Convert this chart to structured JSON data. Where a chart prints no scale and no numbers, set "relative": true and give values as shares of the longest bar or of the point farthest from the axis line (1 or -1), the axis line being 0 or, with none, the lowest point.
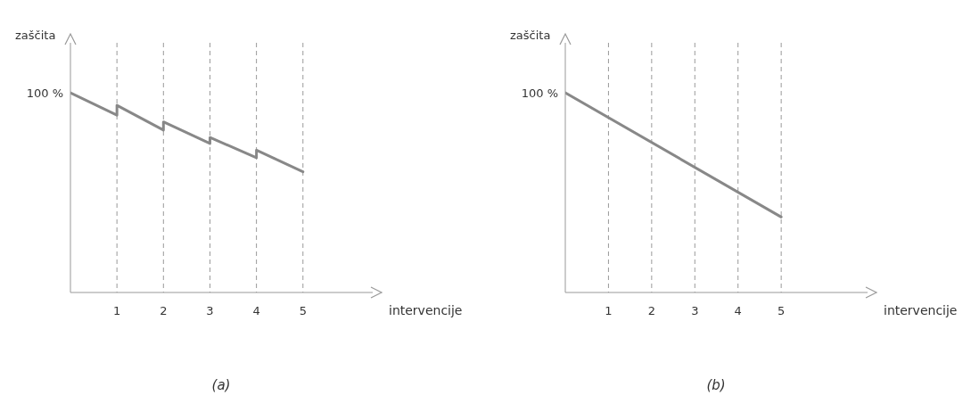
{
  "chart_data": [
    {
      "type": "line",
      "title": "(a)",
      "xlabel": "intervencije",
      "ylabel": "zaščita",
      "relative": true,
      "xlim": [
        0,
        6.5
      ],
      "xticks": [
        1,
        2,
        3,
        4,
        5
      ],
      "grid": "x",
      "annotations": [
        {
          "text": "100 %",
          "x": 0,
          "y": 1
        }
      ],
      "series": [
        {
          "color": "#888888",
          "x": [
            0,
            1,
            1,
            2,
            2,
            3,
            3,
            4,
            4,
            5
          ],
          "values": [
            1,
            0.888,
            0.937,
            0.813,
            0.854,
            0.746,
            0.776,
            0.675,
            0.713,
            0.604
          ]
        }
      ]
    },
    {
      "type": "line",
      "title": "(b)",
      "xlabel": "intervencije",
      "ylabel": "zaščita",
      "relative": true,
      "xlim": [
        0,
        7
      ],
      "xticks": [
        1,
        2,
        3,
        4,
        5
      ],
      "grid": "x",
      "annotations": [
        {
          "text": "100 %",
          "x": 0,
          "y": 1
        }
      ],
      "series": [
        {
          "color": "#888888",
          "x": [
            0,
            5
          ],
          "values": [
            1,
            0.378
          ]
        }
      ]
    }
  ]
}
